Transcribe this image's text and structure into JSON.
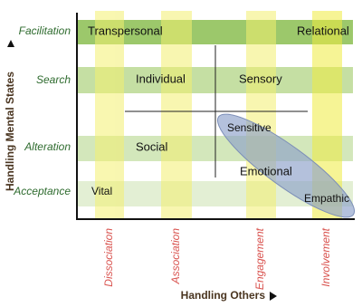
{
  "y_axis": {
    "title": "Handling Mental States",
    "levels": [
      "Facilitation",
      "Search",
      "Alteration",
      "Acceptance"
    ]
  },
  "x_axis": {
    "title": "Handling Others",
    "levels": [
      "Dissociation",
      "Association",
      "Engagement",
      "Involvement"
    ]
  },
  "cells": [
    "Transpersonal",
    "Relational",
    "Individual",
    "Sensory",
    "Sensitive",
    "Social",
    "Emotional",
    "Vital",
    "Empathic"
  ]
}
